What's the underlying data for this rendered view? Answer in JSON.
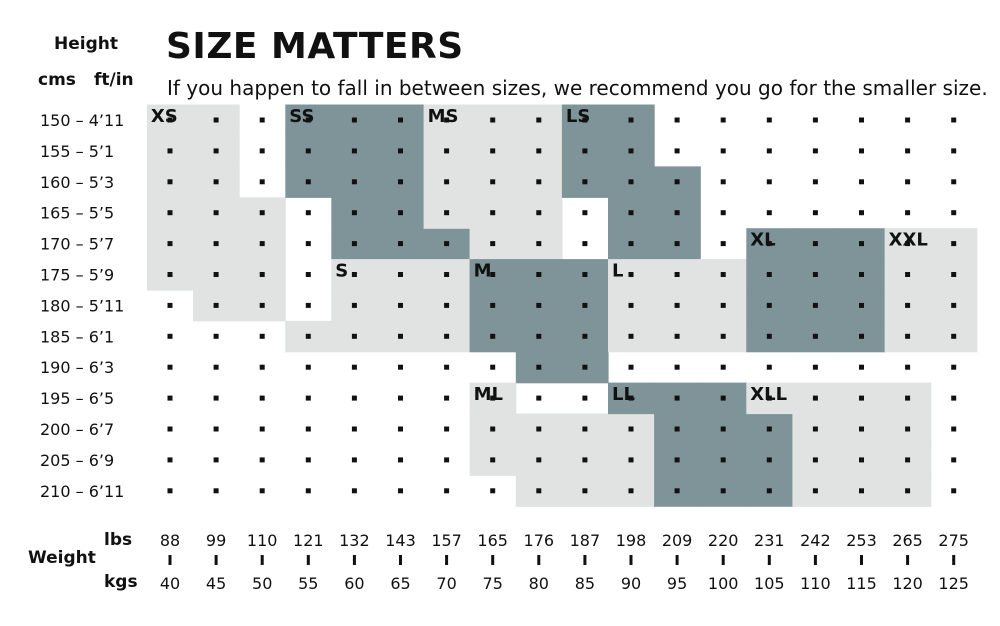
{
  "title": "SIZE MATTERS",
  "subtitle": "If you happen to fall in between sizes, we recommend you go for the smaller size.",
  "axis": {
    "height_label": "Height",
    "cms_label": "cms",
    "ftin_label": "ft/in",
    "weight_label": "Weight",
    "lbs_label": "lbs",
    "kgs_label": "kgs"
  },
  "colors": {
    "light": "#e0e3e1",
    "dark": "#7e9499",
    "dot": "#111111",
    "text": "#111111"
  },
  "chart_data": {
    "type": "heatmap",
    "title": "SIZE MATTERS",
    "subtitle": "If you happen to fall in between sizes, we recommend you go for the smaller size.",
    "y_labels": [
      "150 – 4’11",
      "155 – 5’1",
      "160 – 5’3",
      "165 – 5’5",
      "170 – 5’7",
      "175 – 5’9",
      "180 – 5’11",
      "185 – 6’1",
      "190 – 6’3",
      "195 – 6’5",
      "200 – 6’7",
      "205 – 6’9",
      "210 – 6’11"
    ],
    "x_lbs": [
      "88",
      "99",
      "110",
      "121",
      "132",
      "143",
      "157",
      "165",
      "176",
      "187",
      "198",
      "209",
      "220",
      "231",
      "242",
      "253",
      "265",
      "275"
    ],
    "x_kgs": [
      "40",
      "45",
      "50",
      "55",
      "60",
      "65",
      "70",
      "75",
      "80",
      "85",
      "90",
      "95",
      "100",
      "105",
      "110",
      "115",
      "120",
      "125"
    ],
    "sizes": [
      {
        "name": "XS",
        "shade": "light",
        "cells": [
          [
            0,
            0
          ],
          [
            0,
            1
          ],
          [
            0,
            2
          ],
          [
            0,
            3
          ],
          [
            0,
            4
          ],
          [
            0,
            5
          ],
          [
            1,
            0
          ],
          [
            1,
            1
          ],
          [
            1,
            2
          ],
          [
            1,
            3
          ],
          [
            1,
            4
          ],
          [
            1,
            5
          ],
          [
            1,
            6
          ],
          [
            2,
            3
          ],
          [
            2,
            4
          ],
          [
            2,
            5
          ],
          [
            2,
            6
          ]
        ]
      },
      {
        "name": "SS",
        "shade": "dark",
        "cells": [
          [
            3,
            0
          ],
          [
            3,
            1
          ],
          [
            3,
            2
          ],
          [
            4,
            0
          ],
          [
            4,
            1
          ],
          [
            4,
            2
          ],
          [
            4,
            3
          ],
          [
            4,
            4
          ],
          [
            5,
            0
          ],
          [
            5,
            1
          ],
          [
            5,
            2
          ],
          [
            5,
            3
          ],
          [
            5,
            4
          ],
          [
            6,
            4
          ]
        ]
      },
      {
        "name": "MS",
        "shade": "light",
        "cells": [
          [
            6,
            0
          ],
          [
            6,
            1
          ],
          [
            6,
            2
          ],
          [
            6,
            3
          ],
          [
            7,
            0
          ],
          [
            7,
            1
          ],
          [
            7,
            2
          ],
          [
            7,
            3
          ],
          [
            7,
            4
          ],
          [
            8,
            0
          ],
          [
            8,
            1
          ],
          [
            8,
            2
          ],
          [
            8,
            3
          ],
          [
            8,
            4
          ]
        ]
      },
      {
        "name": "LS",
        "shade": "dark",
        "cells": [
          [
            9,
            0
          ],
          [
            9,
            1
          ],
          [
            9,
            2
          ],
          [
            10,
            0
          ],
          [
            10,
            1
          ],
          [
            10,
            2
          ],
          [
            10,
            3
          ],
          [
            10,
            4
          ],
          [
            11,
            2
          ],
          [
            11,
            3
          ],
          [
            11,
            4
          ]
        ]
      },
      {
        "name": "S",
        "shade": "light",
        "cells": [
          [
            3,
            7
          ],
          [
            4,
            5
          ],
          [
            4,
            6
          ],
          [
            4,
            7
          ],
          [
            5,
            5
          ],
          [
            5,
            6
          ],
          [
            5,
            7
          ],
          [
            6,
            5
          ],
          [
            6,
            6
          ],
          [
            6,
            7
          ]
        ]
      },
      {
        "name": "M",
        "shade": "dark",
        "cells": [
          [
            7,
            5
          ],
          [
            7,
            6
          ],
          [
            7,
            7
          ],
          [
            8,
            5
          ],
          [
            8,
            6
          ],
          [
            8,
            7
          ],
          [
            8,
            8
          ],
          [
            9,
            5
          ],
          [
            9,
            6
          ],
          [
            9,
            7
          ],
          [
            9,
            8
          ]
        ]
      },
      {
        "name": "L",
        "shade": "light",
        "cells": [
          [
            10,
            5
          ],
          [
            10,
            6
          ],
          [
            10,
            7
          ],
          [
            11,
            5
          ],
          [
            11,
            6
          ],
          [
            11,
            7
          ],
          [
            12,
            5
          ],
          [
            12,
            6
          ],
          [
            12,
            7
          ]
        ]
      },
      {
        "name": "XL",
        "shade": "dark",
        "cells": [
          [
            13,
            4
          ],
          [
            13,
            5
          ],
          [
            13,
            6
          ],
          [
            13,
            7
          ],
          [
            14,
            4
          ],
          [
            14,
            5
          ],
          [
            14,
            6
          ],
          [
            14,
            7
          ],
          [
            15,
            4
          ],
          [
            15,
            5
          ],
          [
            15,
            6
          ],
          [
            15,
            7
          ]
        ]
      },
      {
        "name": "XXL",
        "shade": "light",
        "cells": [
          [
            16,
            4
          ],
          [
            16,
            5
          ],
          [
            16,
            6
          ],
          [
            16,
            7
          ],
          [
            17,
            4
          ],
          [
            17,
            5
          ],
          [
            17,
            6
          ],
          [
            17,
            7
          ]
        ]
      },
      {
        "name": "ML",
        "shade": "light",
        "cells": [
          [
            7,
            9
          ],
          [
            7,
            10
          ],
          [
            7,
            11
          ],
          [
            8,
            10
          ],
          [
            8,
            11
          ],
          [
            8,
            12
          ],
          [
            9,
            10
          ],
          [
            9,
            11
          ],
          [
            9,
            12
          ],
          [
            10,
            10
          ],
          [
            10,
            11
          ],
          [
            10,
            12
          ]
        ]
      },
      {
        "name": "LL",
        "shade": "dark",
        "cells": [
          [
            10,
            9
          ],
          [
            11,
            9
          ],
          [
            11,
            10
          ],
          [
            11,
            11
          ],
          [
            11,
            12
          ],
          [
            12,
            9
          ],
          [
            12,
            10
          ],
          [
            12,
            11
          ],
          [
            12,
            12
          ],
          [
            13,
            10
          ],
          [
            13,
            11
          ],
          [
            13,
            12
          ]
        ]
      },
      {
        "name": "XLL",
        "shade": "light",
        "cells": [
          [
            13,
            9
          ],
          [
            14,
            9
          ],
          [
            14,
            10
          ],
          [
            14,
            11
          ],
          [
            14,
            12
          ],
          [
            15,
            9
          ],
          [
            15,
            10
          ],
          [
            15,
            11
          ],
          [
            15,
            12
          ],
          [
            16,
            9
          ],
          [
            16,
            10
          ],
          [
            16,
            11
          ],
          [
            16,
            12
          ]
        ]
      }
    ]
  }
}
